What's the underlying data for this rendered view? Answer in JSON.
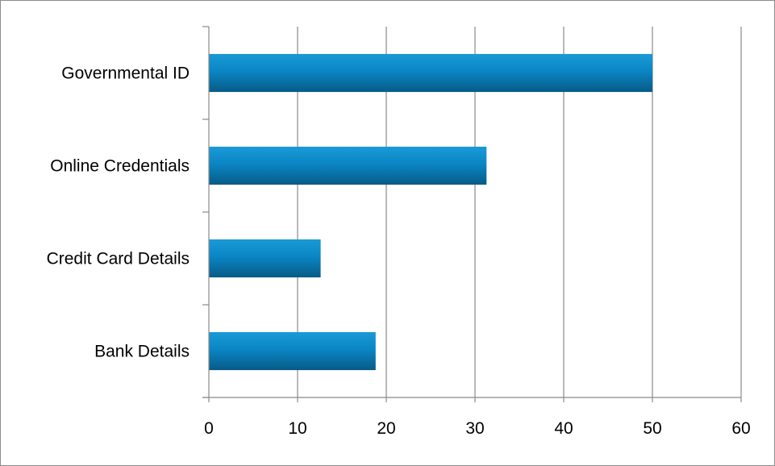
{
  "chart_data": {
    "type": "bar",
    "orientation": "horizontal",
    "categories": [
      "Governmental ID",
      "Online Credentials",
      "Credit Card Details",
      "Bank Details"
    ],
    "values": [
      50,
      31.3,
      12.6,
      18.8
    ],
    "xlim": [
      0,
      60
    ],
    "xticks": [
      0,
      10,
      20,
      30,
      40,
      50,
      60
    ],
    "grid": true,
    "legend": "none",
    "bar_color": "#0a86c4",
    "bar_color_dark": "#075b87"
  }
}
